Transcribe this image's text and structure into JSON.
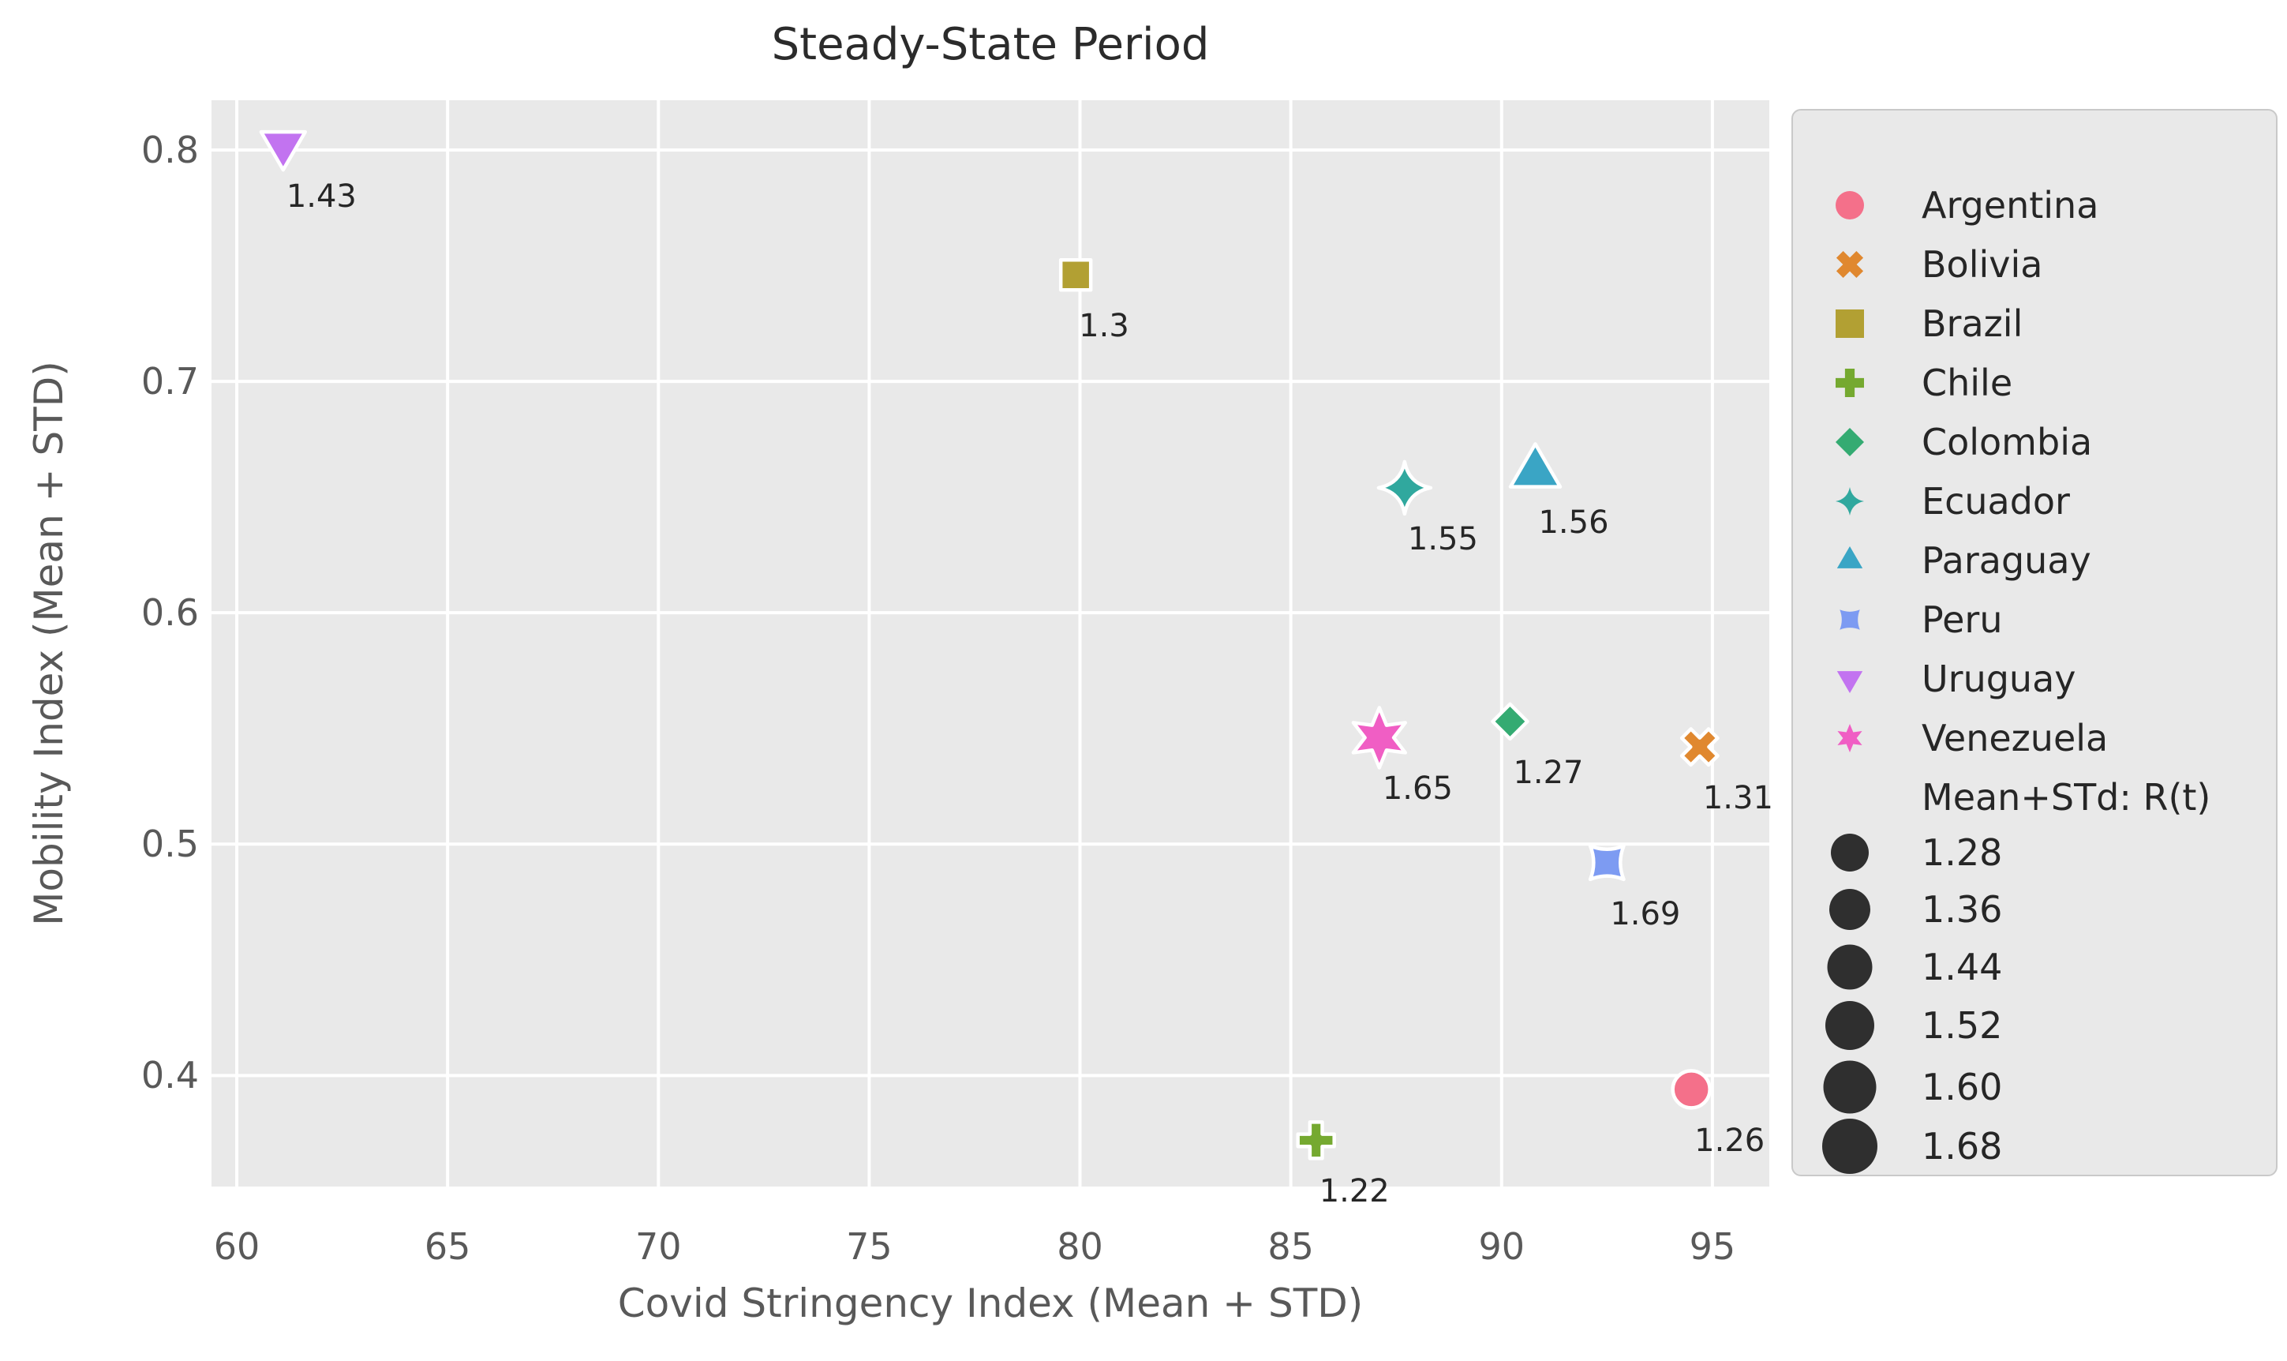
{
  "title": "Steady-State Period",
  "axes": {
    "x_label": "Covid Stringency Index (Mean + STD)",
    "y_label": "Mobility Index (Mean + STD)",
    "x_ticks": [
      "60",
      "65",
      "70",
      "75",
      "80",
      "85",
      "90",
      "95"
    ],
    "y_ticks": [
      "0.4",
      "0.5",
      "0.6",
      "0.7",
      "0.8"
    ],
    "x_range": [
      59.4,
      96.35
    ],
    "y_range": [
      0.352,
      0.8215
    ],
    "grid": true,
    "plot_bg_color": "#e9e9e9",
    "gridline_color": "#ffffff"
  },
  "chart_data": {
    "type": "scatter",
    "title": "Steady-State Period",
    "xlabel": "Covid Stringency Index (Mean + STD)",
    "ylabel": "Mobility Index (Mean + STD)",
    "size_encoding_label": "Mean+STd: R(t)",
    "points": [
      {
        "country": "Argentina",
        "x": 94.5,
        "y": 0.394,
        "rt": 1.26,
        "label": "1.26",
        "marker": "circle",
        "color": "#f4708a",
        "size": 47
      },
      {
        "country": "Bolivia",
        "x": 94.7,
        "y": 0.542,
        "rt": 1.31,
        "label": "1.31",
        "marker": "xmark",
        "color": "#e0882f",
        "size": 48
      },
      {
        "country": "Brazil",
        "x": 79.9,
        "y": 0.746,
        "rt": 1.3,
        "label": "1.3",
        "marker": "square",
        "color": "#b2a033",
        "size": 38
      },
      {
        "country": "Chile",
        "x": 85.6,
        "y": 0.372,
        "rt": 1.22,
        "label": "1.22",
        "marker": "plus",
        "color": "#75a930",
        "size": 46
      },
      {
        "country": "Colombia",
        "x": 90.2,
        "y": 0.553,
        "rt": 1.27,
        "label": "1.27",
        "marker": "diamond",
        "color": "#34ab72",
        "size": 44
      },
      {
        "country": "Ecuador",
        "x": 87.7,
        "y": 0.654,
        "rt": 1.55,
        "label": "1.55",
        "marker": "star4",
        "color": "#30a89e",
        "size": 66
      },
      {
        "country": "Paraguay",
        "x": 90.8,
        "y": 0.661,
        "rt": 1.56,
        "label": "1.56",
        "marker": "triangle-up",
        "color": "#3aa5c5",
        "size": 70
      },
      {
        "country": "Peru",
        "x": 92.5,
        "y": 0.492,
        "rt": 1.69,
        "label": "1.69",
        "marker": "star4-diag",
        "color": "#7d9bf2",
        "size": 60
      },
      {
        "country": "Uruguay",
        "x": 61.1,
        "y": 0.802,
        "rt": 1.43,
        "label": "1.43",
        "marker": "triangle-down",
        "color": "#c273f0",
        "size": 62
      },
      {
        "country": "Venezuela",
        "x": 87.1,
        "y": 0.546,
        "rt": 1.65,
        "label": "1.65",
        "marker": "star6",
        "color": "#f05ec4",
        "size": 76
      }
    ]
  },
  "legend": {
    "countries": [
      {
        "label": "Argentina",
        "marker": "circle",
        "color": "#f4708a"
      },
      {
        "label": "Bolivia",
        "marker": "xmark",
        "color": "#e0882f"
      },
      {
        "label": "Brazil",
        "marker": "square",
        "color": "#b2a033"
      },
      {
        "label": "Chile",
        "marker": "plus",
        "color": "#75a930"
      },
      {
        "label": "Colombia",
        "marker": "diamond",
        "color": "#34ab72"
      },
      {
        "label": "Ecuador",
        "marker": "star4",
        "color": "#30a89e"
      },
      {
        "label": "Paraguay",
        "marker": "triangle-up",
        "color": "#3aa5c5"
      },
      {
        "label": "Peru",
        "marker": "star4-diag",
        "color": "#7d9bf2"
      },
      {
        "label": "Uruguay",
        "marker": "triangle-down",
        "color": "#c273f0"
      },
      {
        "label": "Venezuela",
        "marker": "star6",
        "color": "#f05ec4"
      }
    ],
    "size_title": "Mean+STd: R(t)",
    "sizes": [
      "1.28",
      "1.36",
      "1.44",
      "1.52",
      "1.60",
      "1.68"
    ],
    "size_marker_color": "#2f2f2f"
  }
}
